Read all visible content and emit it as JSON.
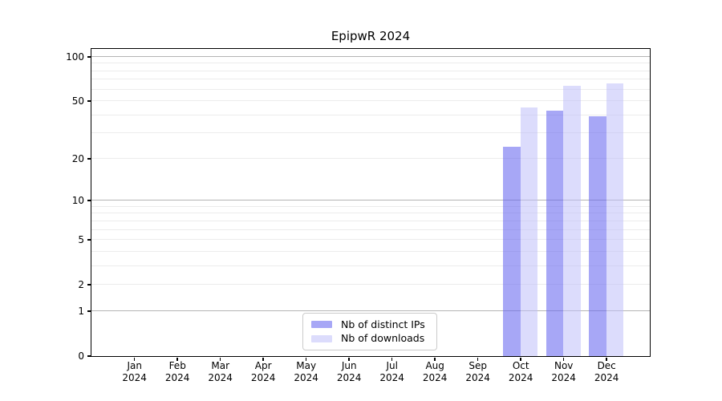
{
  "title": "EpipwR 2024",
  "chart_data": {
    "type": "bar",
    "title": "EpipwR 2024",
    "xlabel": "",
    "ylabel": "",
    "scale": "log10(1+y)",
    "year": "2024",
    "categories": [
      "Jan",
      "Feb",
      "Mar",
      "Apr",
      "May",
      "Jun",
      "Jul",
      "Aug",
      "Sep",
      "Oct",
      "Nov",
      "Dec"
    ],
    "series": [
      {
        "key": "distinct-ips",
        "name": "Nb of distinct IPs",
        "color": "rgba(100,100,240,0.57)",
        "values": [
          0,
          0,
          0,
          0,
          0,
          0,
          0,
          0,
          0,
          24,
          43,
          39
        ]
      },
      {
        "key": "downloads",
        "name": "Nb of downloads",
        "color": "rgba(190,190,250,0.54)",
        "values": [
          0,
          0,
          0,
          0,
          0,
          0,
          0,
          0,
          0,
          45,
          63,
          66
        ]
      }
    ],
    "yticks": [
      0,
      1,
      2,
      5,
      10,
      20,
      50,
      100
    ],
    "gridlines": {
      "major": [
        1,
        10,
        100
      ],
      "minor": [
        2,
        3,
        4,
        5,
        6,
        7,
        8,
        9,
        20,
        30,
        40,
        50,
        60,
        70,
        80,
        90
      ]
    },
    "ylim": [
      0,
      113
    ],
    "legend_position": "lower center",
    "colors": {
      "major_grid": "#b4b4b4",
      "minor_grid": "#ececec",
      "axis": "#000000",
      "background": "#ffffff"
    }
  }
}
